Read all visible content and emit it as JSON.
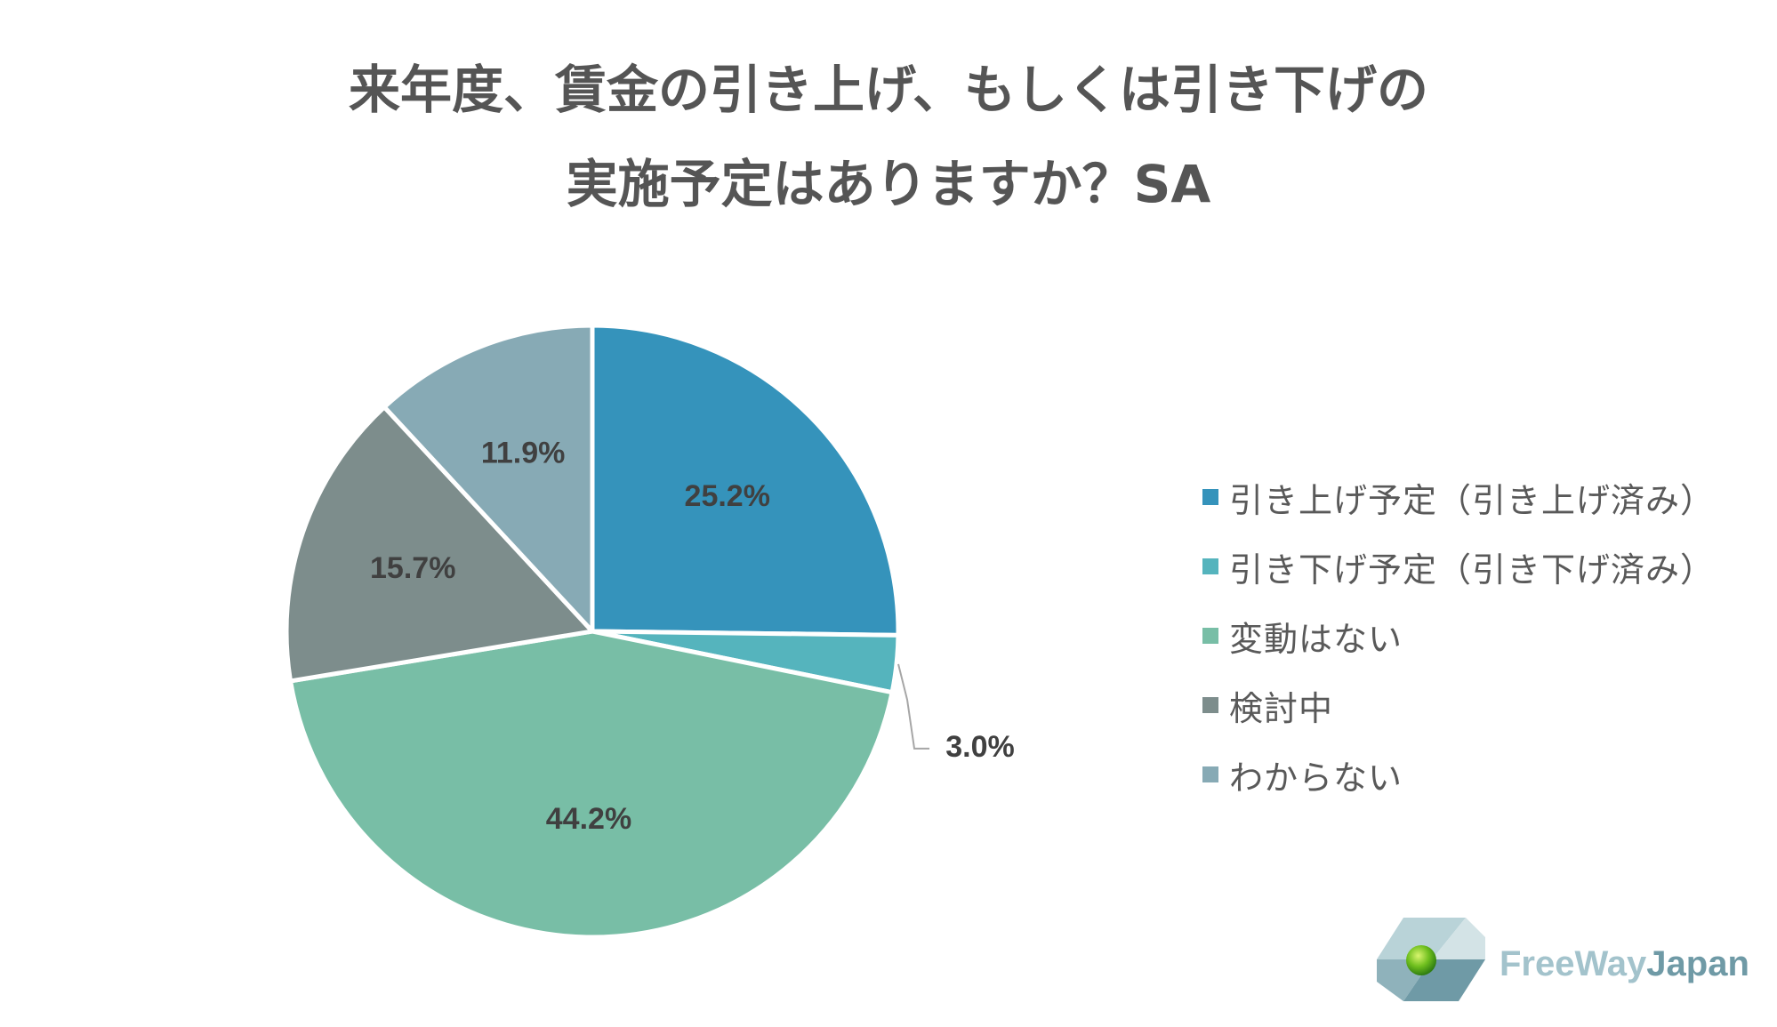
{
  "chart_data": {
    "type": "pie",
    "title_lines": [
      "来年度、賃金の引き上げ、もしくは引き下げの",
      "実施予定はありますか？SA"
    ],
    "slices": [
      {
        "name": "引き上げ予定（引き上げ済み）",
        "value": 25.2,
        "label": "25.2%",
        "color": "#3593bb"
      },
      {
        "name": "引き下げ予定（引き下げ済み）",
        "value": 3.0,
        "label": "3.0%",
        "color": "#55b4bd"
      },
      {
        "name": "変動はない",
        "value": 44.2,
        "label": "44.2%",
        "color": "#78bea6"
      },
      {
        "name": "検討中",
        "value": 15.7,
        "label": "15.7%",
        "color": "#7d8d8c"
      },
      {
        "name": "わからない",
        "value": 11.9,
        "label": "11.9%",
        "color": "#87aab5"
      }
    ],
    "legend_position": "right"
  },
  "logo": {
    "text_light": "FreeWay",
    "text_dark": "Japan"
  }
}
